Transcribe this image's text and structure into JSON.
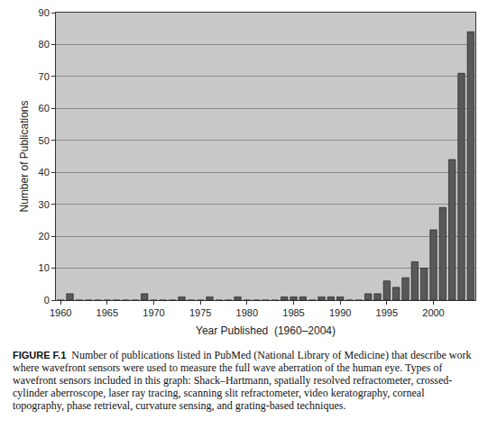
{
  "chart_data": {
    "type": "bar",
    "x_label": "Year Published  (1960–2004)",
    "y_label": "Number of Publications",
    "x": [
      1960,
      1961,
      1962,
      1963,
      1964,
      1965,
      1966,
      1967,
      1968,
      1969,
      1970,
      1971,
      1972,
      1973,
      1974,
      1975,
      1976,
      1977,
      1978,
      1979,
      1980,
      1981,
      1982,
      1983,
      1984,
      1985,
      1986,
      1987,
      1988,
      1989,
      1990,
      1991,
      1992,
      1993,
      1994,
      1995,
      1996,
      1997,
      1998,
      1999,
      2000,
      2001,
      2002,
      2003,
      2004
    ],
    "values": [
      0,
      2,
      0,
      0,
      0,
      0,
      0,
      0,
      0,
      2,
      0,
      0,
      0,
      1,
      0,
      0,
      1,
      0,
      0,
      1,
      0,
      0,
      0,
      0,
      1,
      1,
      1,
      0,
      1,
      1,
      1,
      0,
      0,
      2,
      2,
      6,
      4,
      7,
      12,
      10,
      22,
      29,
      44,
      71,
      84
    ],
    "color": "#595959",
    "xlim": [
      1959.5,
      2004.5
    ],
    "xticks": [
      1960,
      1965,
      1970,
      1975,
      1980,
      1985,
      1990,
      1995,
      2000
    ],
    "ylim": [
      0,
      90
    ],
    "yticks": [
      0,
      10,
      20,
      30,
      40,
      50,
      60,
      70,
      80,
      90
    ],
    "grid": true,
    "caption": {
      "label": "FIGURE F.1",
      "text": "Number of publications listed in PubMed (National Library of Medicine) that describe work where wavefront sensors were used to measure the full wave aberration of the human eye. Types of wavefront sensors included in this graph: Shack–Hartmann, spatially resolved refractometer, crossed-cylinder aberroscope, laser ray tracing, scanning slit refractometer, video keratography, corneal topography, phase retrieval, curvature sensing, and grating-based techniques."
    }
  }
}
